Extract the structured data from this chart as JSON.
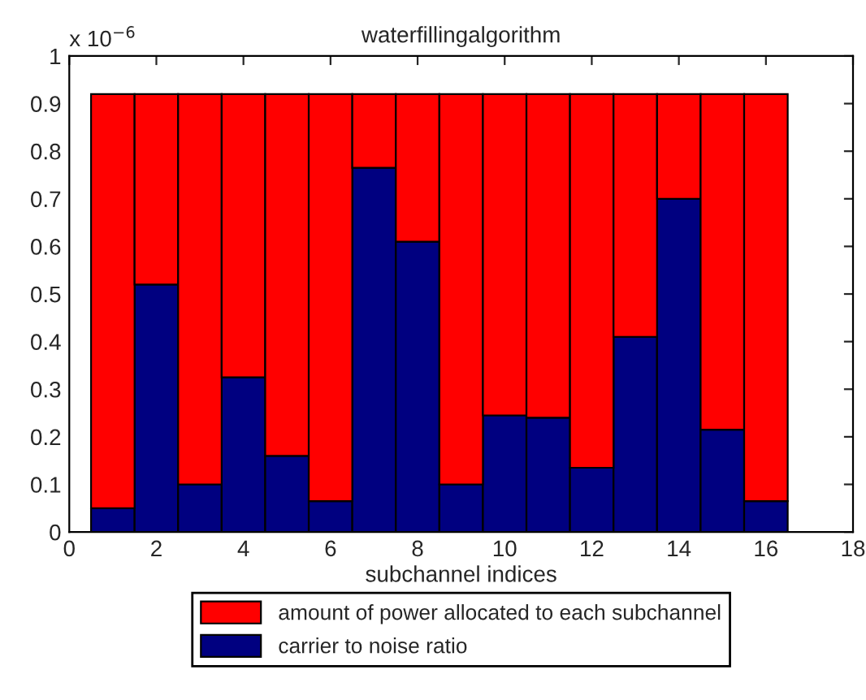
{
  "chart_data": {
    "type": "bar",
    "stacked": true,
    "title": "waterfillingalgorithm",
    "xlabel": "subchannel indices",
    "annotations": [
      "x 10$^{−6}$"
    ],
    "x": [
      1,
      2,
      3,
      4,
      5,
      6,
      7,
      8,
      9,
      10,
      11,
      12,
      13,
      14,
      15,
      16
    ],
    "series": [
      {
        "name": "carrier to noise ratio",
        "color": "#000080",
        "values": [
          0.05,
          0.52,
          0.1,
          0.325,
          0.16,
          0.065,
          0.765,
          0.61,
          0.1,
          0.245,
          0.24,
          0.135,
          0.41,
          0.7,
          0.215,
          0.065
        ]
      },
      {
        "name": "amount of power allocated to each subchannel",
        "color": "#ff0000",
        "values": [
          0.87,
          0.4,
          0.82,
          0.595,
          0.76,
          0.855,
          0.155,
          0.31,
          0.82,
          0.675,
          0.68,
          0.785,
          0.51,
          0.22,
          0.705,
          0.855
        ]
      }
    ],
    "xlim": [
      0,
      18
    ],
    "xticks": [
      0,
      2,
      4,
      6,
      8,
      10,
      12,
      14,
      16,
      18
    ],
    "ylim": [
      0,
      1
    ],
    "yticks": [
      0,
      0.1,
      0.2,
      0.3,
      0.4,
      0.5,
      0.6,
      0.7,
      0.8,
      0.9,
      1
    ],
    "grid": false,
    "legend": "bottom"
  }
}
